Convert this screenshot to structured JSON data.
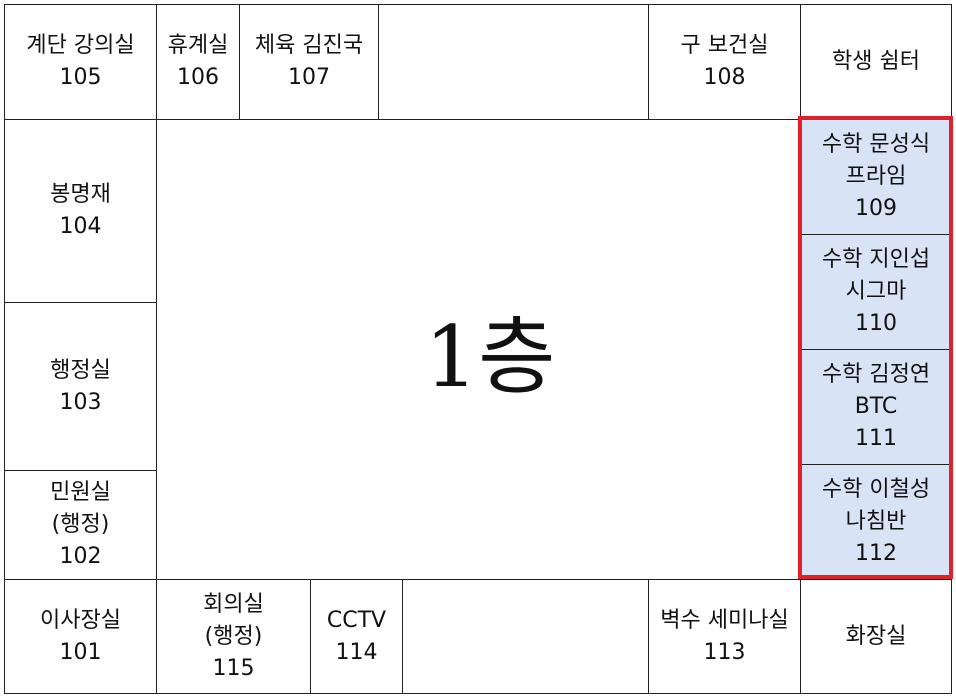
{
  "floor_label": "1층",
  "highlight_color": "#e0202a",
  "room_highlight_fill": "#d9e3f6",
  "rooms": {
    "r105": {
      "name": "계단 강의실",
      "number": "105"
    },
    "r106": {
      "name": "휴계실",
      "number": "106"
    },
    "r107": {
      "name": "체육 김진국",
      "number": "107"
    },
    "r108": {
      "name": "구 보건실",
      "number": "108"
    },
    "lounge": {
      "name": "학생 쉼터"
    },
    "r104": {
      "name": "봉명재",
      "number": "104"
    },
    "r103": {
      "name": "행정실",
      "number": "103"
    },
    "r102": {
      "name": "민원실",
      "sub": "(행정)",
      "number": "102"
    },
    "r109": {
      "name": "수학 문성식",
      "sub": "프라임",
      "number": "109"
    },
    "r110": {
      "name": "수학 지인섭",
      "sub": "시그마",
      "number": "110"
    },
    "r111": {
      "name": "수학 김정연",
      "sub": "BTC",
      "number": "111"
    },
    "r112": {
      "name": "수학 이철성",
      "sub": "나침반",
      "number": "112"
    },
    "r101": {
      "name": "이사장실",
      "number": "101"
    },
    "r115": {
      "name": "회의실",
      "sub": "(행정)",
      "number": "115"
    },
    "r114": {
      "name": "CCTV",
      "number": "114"
    },
    "r113": {
      "name": "벽수 세미나실",
      "number": "113"
    },
    "restroom": {
      "name": "화장실"
    }
  }
}
